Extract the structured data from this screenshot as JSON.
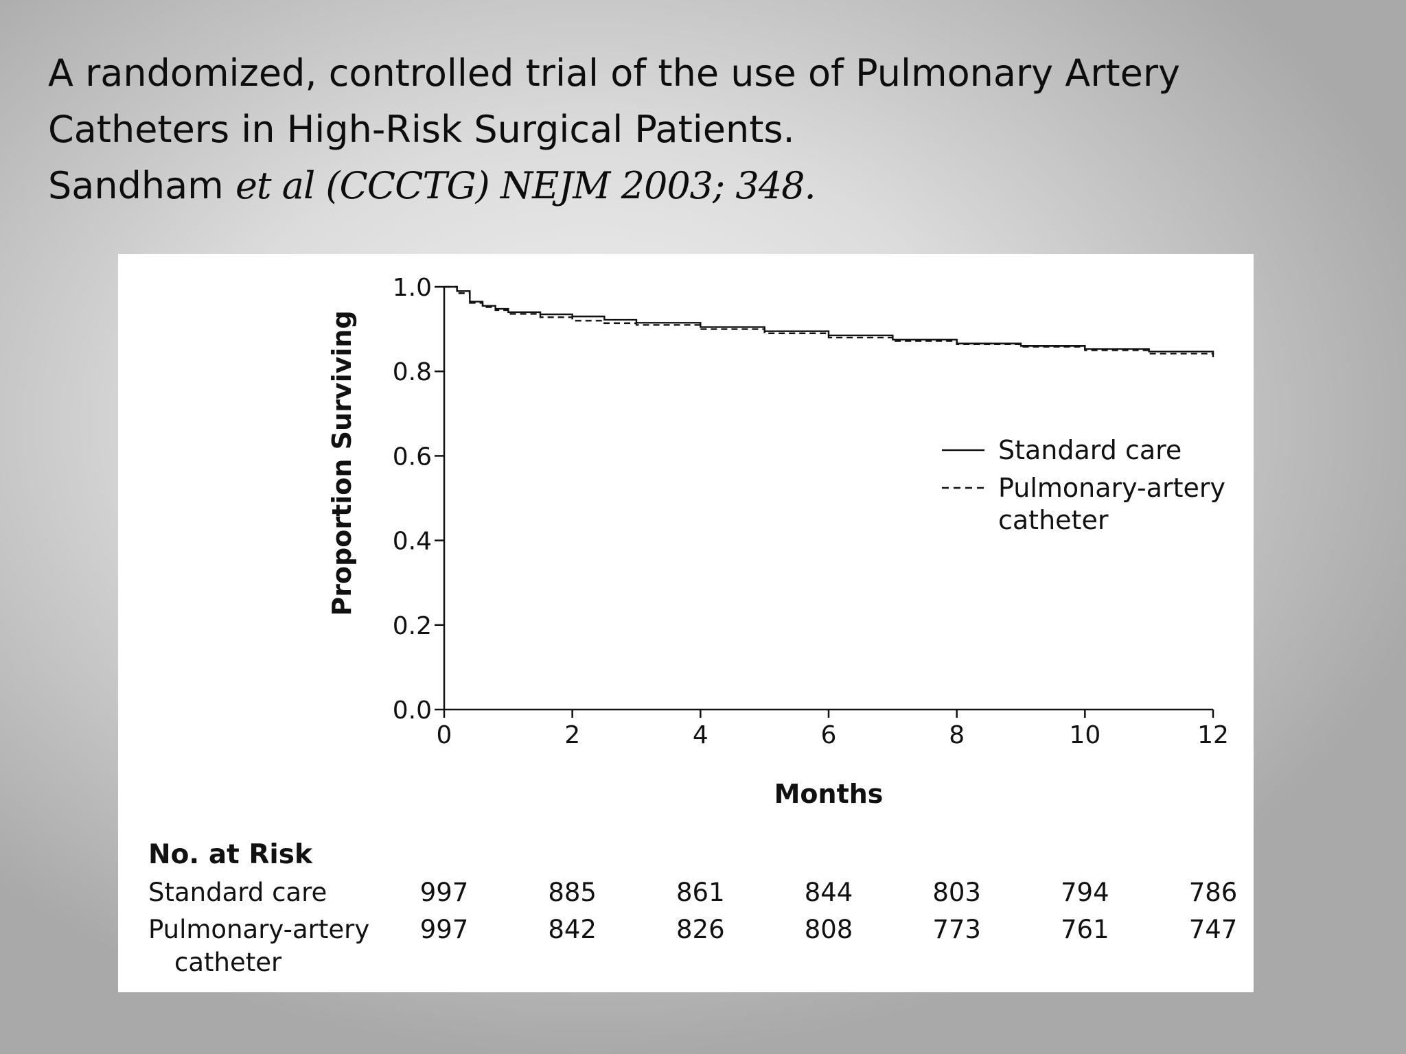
{
  "slide": {
    "title_line1": "A randomized, controlled trial of the use of Pulmonary Artery",
    "title_line2": "Catheters in High-Risk Surgical Patients.",
    "author": "Sandham",
    "citation": "et al (CCCTG) NEJM 2003; 348."
  },
  "chart_data": {
    "type": "line",
    "xlabel": "Months",
    "ylabel": "Proportion Surviving",
    "xlim": [
      0,
      12
    ],
    "ylim": [
      0.0,
      1.0
    ],
    "x_ticks": [
      "0",
      "2",
      "4",
      "6",
      "8",
      "10",
      "12"
    ],
    "y_ticks": [
      "0.0",
      "0.2",
      "0.4",
      "0.6",
      "0.8",
      "1.0"
    ],
    "legend_position": "right",
    "series": [
      {
        "name": "Standard care",
        "style": "solid",
        "x": [
          0,
          0.2,
          0.4,
          0.6,
          0.8,
          1.0,
          1.5,
          2.0,
          2.5,
          3.0,
          4.0,
          5.0,
          6.0,
          7.0,
          8.0,
          9.0,
          10.0,
          11.0,
          12.0
        ],
        "y": [
          1.0,
          0.99,
          0.965,
          0.955,
          0.948,
          0.94,
          0.935,
          0.93,
          0.922,
          0.915,
          0.905,
          0.895,
          0.885,
          0.875,
          0.866,
          0.86,
          0.853,
          0.847,
          0.842
        ]
      },
      {
        "name": "Pulmonary-artery catheter",
        "style": "dashed",
        "x": [
          0,
          0.2,
          0.4,
          0.6,
          0.8,
          1.0,
          1.5,
          2.0,
          2.5,
          3.0,
          4.0,
          5.0,
          6.0,
          7.0,
          8.0,
          9.0,
          10.0,
          11.0,
          12.0
        ],
        "y": [
          1.0,
          0.985,
          0.962,
          0.952,
          0.945,
          0.936,
          0.928,
          0.92,
          0.914,
          0.91,
          0.9,
          0.89,
          0.88,
          0.872,
          0.864,
          0.858,
          0.85,
          0.842,
          0.834
        ]
      }
    ],
    "risk_table": {
      "title": "No. at Risk",
      "rows": [
        {
          "label_line1": "Standard care",
          "label_line2": "",
          "values": [
            "997",
            "885",
            "861",
            "844",
            "803",
            "794",
            "786"
          ]
        },
        {
          "label_line1": "Pulmonary-artery",
          "label_line2": "catheter",
          "values": [
            "997",
            "842",
            "826",
            "808",
            "773",
            "761",
            "747"
          ]
        }
      ]
    }
  },
  "legend": {
    "item1": "Standard care",
    "item2_line1": "Pulmonary-artery",
    "item2_line2": "catheter"
  }
}
